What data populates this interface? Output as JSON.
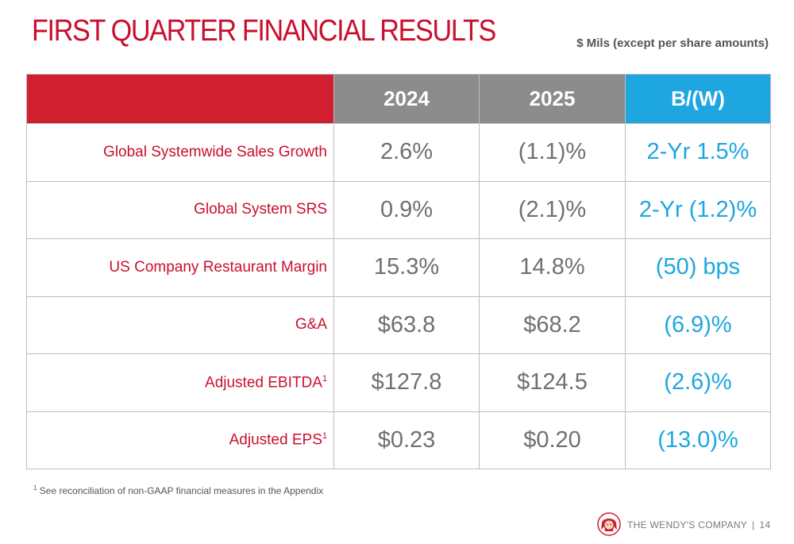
{
  "title": "FIRST QUARTER FINANCIAL RESULTS",
  "units_note": "$ Mils (except per share amounts)",
  "colors": {
    "brand_red": "#c8102e",
    "header_gray": "#8c8c8c",
    "accent_blue": "#1ea6e0"
  },
  "table": {
    "headers": {
      "label": "",
      "col1": "2024",
      "col2": "2025",
      "col3": "B/(W)"
    },
    "rows": [
      {
        "label": "Global Systemwide Sales Growth",
        "marker": "",
        "v2024": "2.6%",
        "v2025": "(1.1)%",
        "bw": "2-Yr 1.5%"
      },
      {
        "label": "Global System SRS",
        "marker": "",
        "v2024": "0.9%",
        "v2025": "(2.1)%",
        "bw": "2-Yr (1.2)%"
      },
      {
        "label": "US Company Restaurant Margin",
        "marker": "",
        "v2024": "15.3%",
        "v2025": "14.8%",
        "bw": "(50) bps"
      },
      {
        "label": "G&A",
        "marker": "",
        "v2024": "$63.8",
        "v2025": "$68.2",
        "bw": "(6.9)%"
      },
      {
        "label": "Adjusted EBITDA",
        "marker": "1",
        "v2024": "$127.8",
        "v2025": "$124.5",
        "bw": "(2.6)%"
      },
      {
        "label": "Adjusted EPS",
        "marker": "1",
        "v2024": "$0.23",
        "v2025": "$0.20",
        "bw": "(13.0)%"
      }
    ]
  },
  "footnote": {
    "marker": "1",
    "text": "See reconciliation of non-GAAP financial measures in the Appendix"
  },
  "footer": {
    "logo_icon": "wendys-logo-icon",
    "company": "THE WENDY'S COMPANY",
    "separator": "|",
    "page_number": "14"
  }
}
